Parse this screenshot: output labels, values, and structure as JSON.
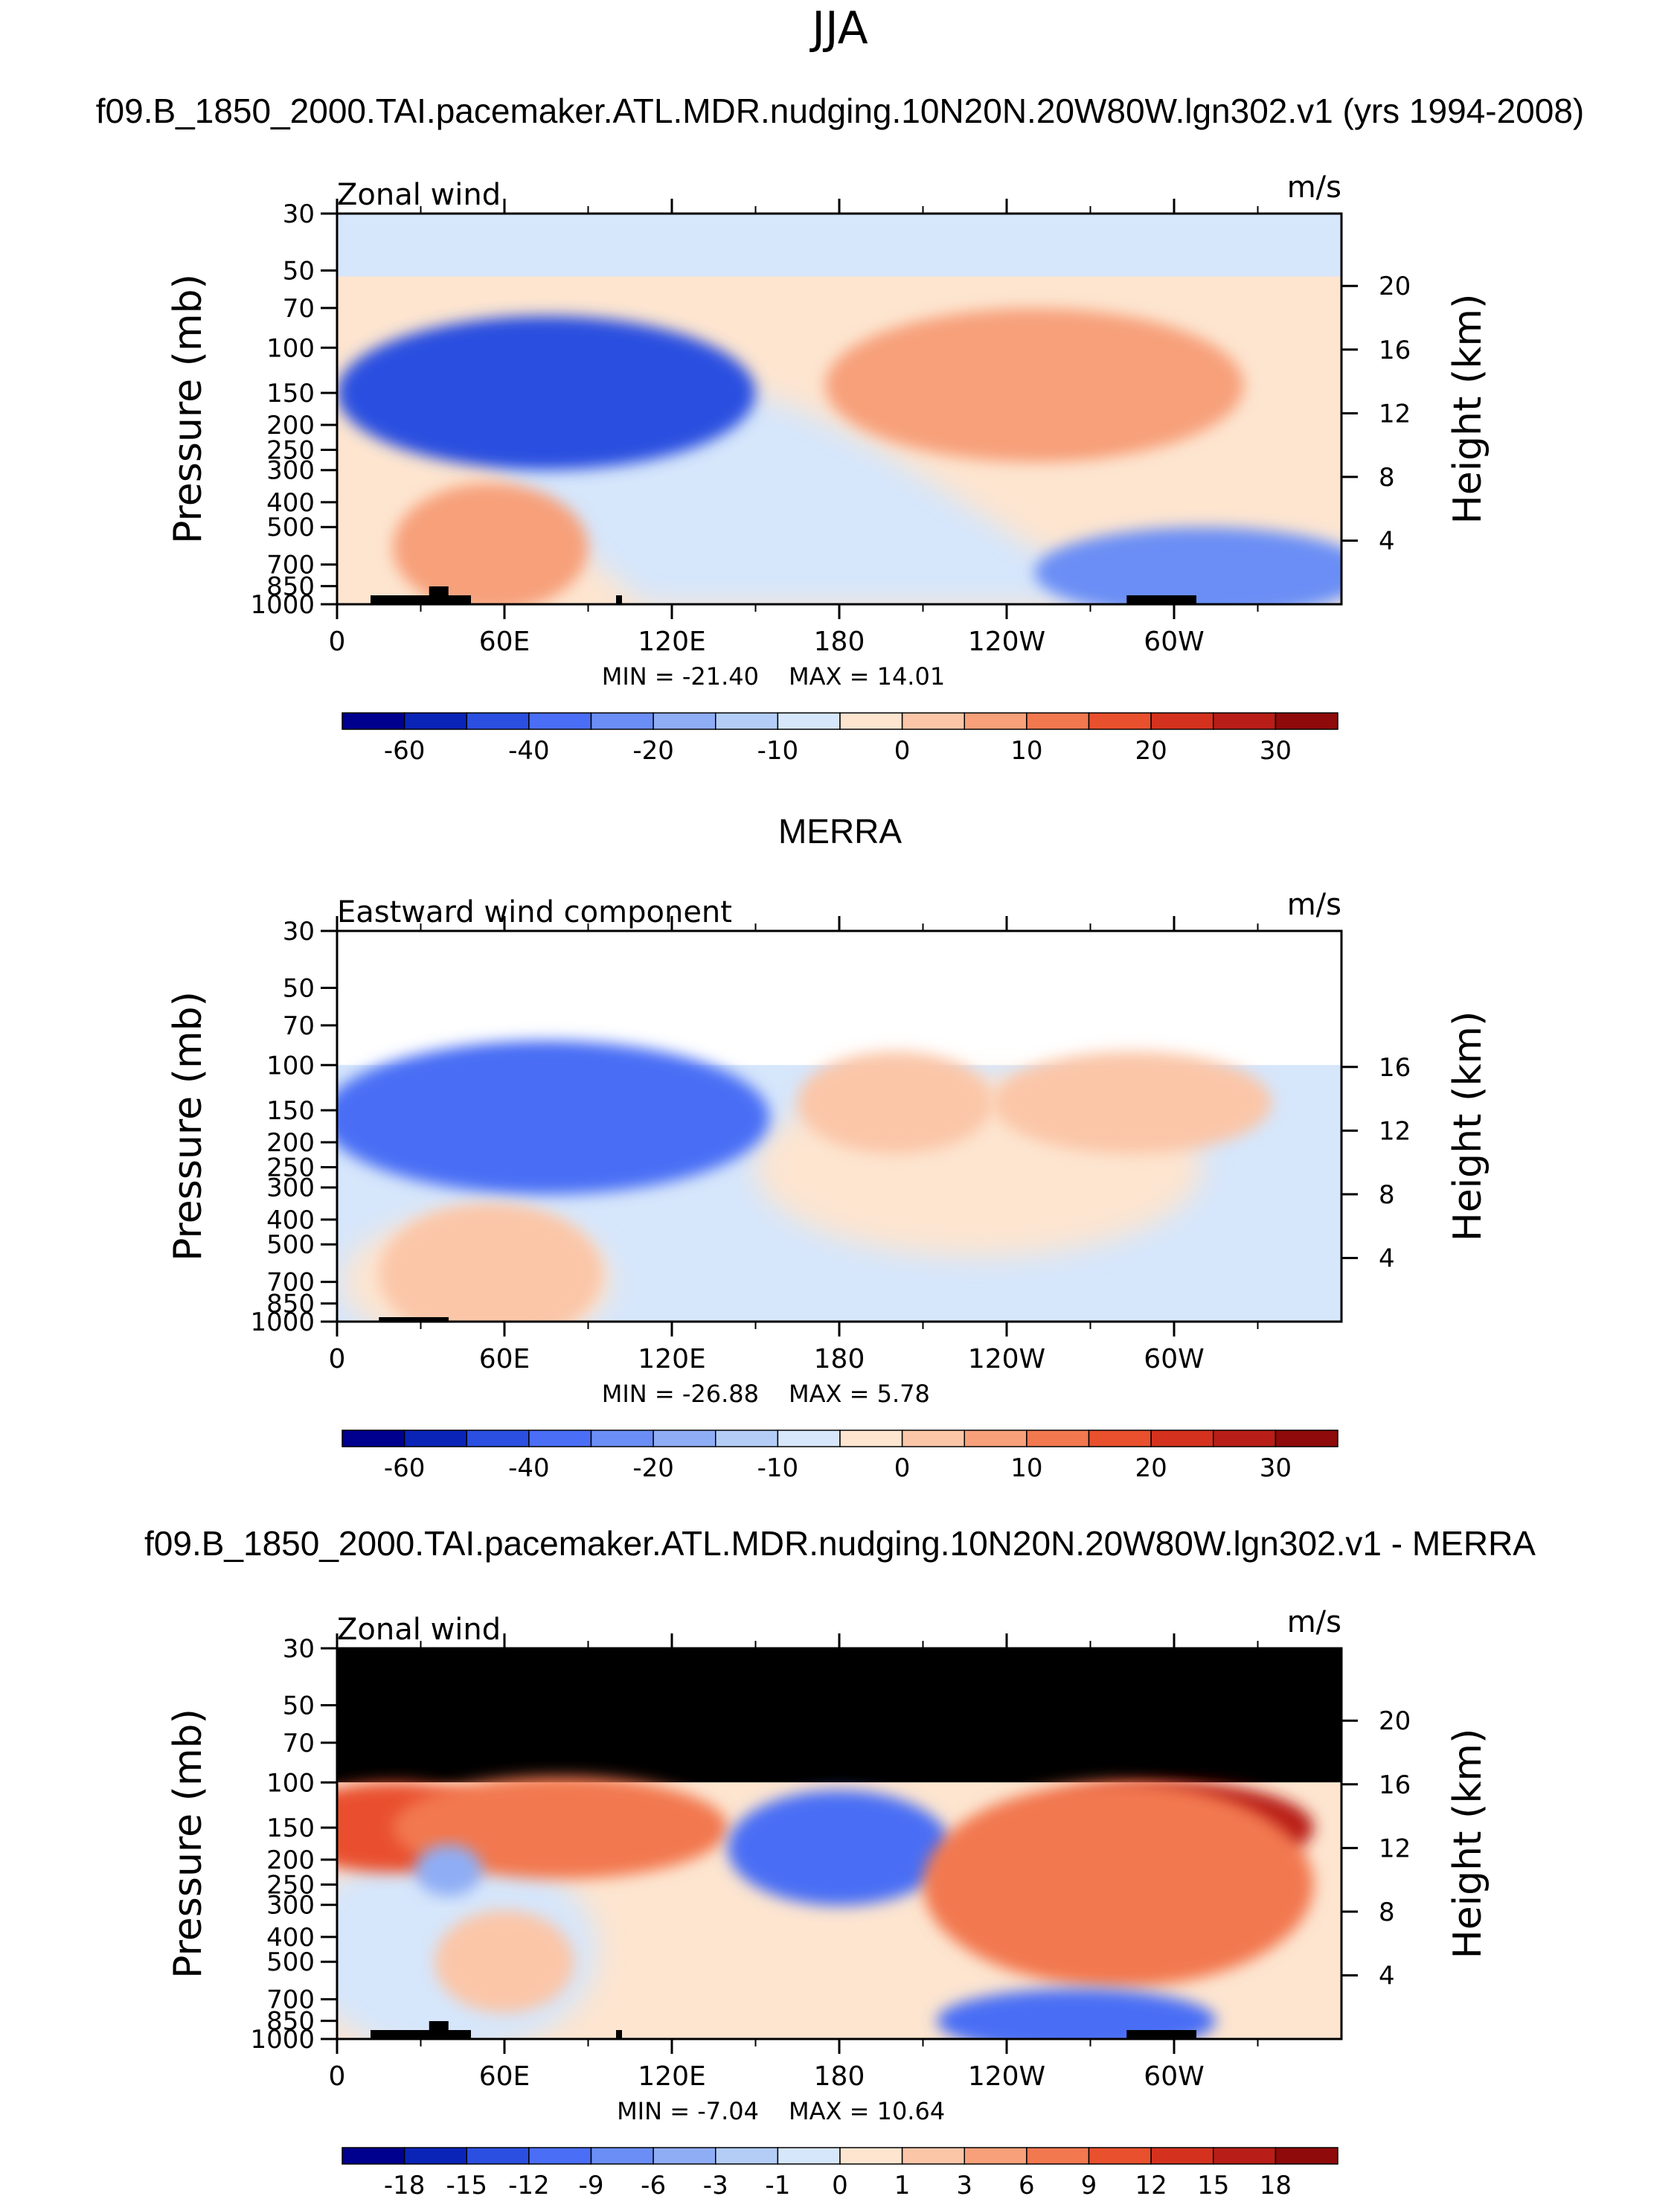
{
  "figure": {
    "season": "JJA",
    "top_title": "f09.B_1850_2000.TAI.pacemaker.ATL.MDR.nudging.10N20N.20W80W.lgn302.v1 (yrs 1994-2008)",
    "middle_title": "MERRA",
    "bottom_title": "f09.B_1850_2000.TAI.pacemaker.ATL.MDR.nudging.10N20N.20W80W.lgn302.v1 - MERRA"
  },
  "chart_data": [
    {
      "type": "heatmap",
      "id": "model",
      "left_label": "Zonal wind",
      "units": "m/s",
      "xlabel": "",
      "ylabel": "Pressure (mb)",
      "y2label": "Height (km)",
      "x_ticks": [
        "0",
        "60E",
        "120E",
        "180",
        "120W",
        "60W"
      ],
      "x_tick_lon": [
        0,
        60,
        120,
        180,
        240,
        300
      ],
      "xlim": [
        0,
        360
      ],
      "y_ticks": [
        "30",
        "50",
        "70",
        "100",
        "150",
        "200",
        "250",
        "300",
        "400",
        "500",
        "700",
        "850",
        "1000"
      ],
      "ylim": [
        1000,
        30
      ],
      "height_ticks": [
        "20",
        "16",
        "12",
        "8",
        "4"
      ],
      "min_label": "MIN = -21.40",
      "max_label": "MAX = 14.01",
      "min": -21.4,
      "max": 14.01,
      "colorbar": [
        "-60",
        "-40",
        "-20",
        "-10",
        "0",
        "10",
        "20",
        "30"
      ],
      "colorbar_colors": [
        "#00008f",
        "#0a24b8",
        "#2b4fe0",
        "#4a6ef5",
        "#6a8ef5",
        "#8eadf5",
        "#b3cdf7",
        "#d6e6fb",
        "#fde5d0",
        "#fbc6a8",
        "#f7a07a",
        "#f2784f",
        "#e9502e",
        "#d4321e",
        "#b81e17",
        "#8f0a0a"
      ],
      "features": [
        {
          "lon": 70,
          "p": 150,
          "value": -21,
          "rx": 55,
          "rp": 0.45
        },
        {
          "lon": 75,
          "p": 150,
          "value": -14,
          "rx": 75,
          "rp": 0.6
        },
        {
          "lon": 260,
          "p": 150,
          "value": 14,
          "rx": 40,
          "rp": 0.4
        },
        {
          "lon": 250,
          "p": 140,
          "value": 8,
          "rx": 75,
          "rp": 0.6
        },
        {
          "lon": 55,
          "p": 600,
          "value": 8,
          "rx": 35,
          "rp": 0.5
        },
        {
          "lon": 310,
          "p": 750,
          "value": -8,
          "rx": 60,
          "rp": 0.35
        }
      ]
    },
    {
      "type": "heatmap",
      "id": "merra",
      "left_label": "Eastward wind component",
      "units": "m/s",
      "xlabel": "",
      "ylabel": "Pressure (mb)",
      "y2label": "Height (km)",
      "x_ticks": [
        "0",
        "60E",
        "120E",
        "180",
        "120W",
        "60W"
      ],
      "x_tick_lon": [
        0,
        60,
        120,
        180,
        240,
        300
      ],
      "xlim": [
        0,
        360
      ],
      "y_ticks": [
        "30",
        "50",
        "70",
        "100",
        "150",
        "200",
        "250",
        "300",
        "400",
        "500",
        "700",
        "850",
        "1000"
      ],
      "ylim": [
        1000,
        30
      ],
      "data_top_p": 100,
      "height_ticks": [
        "16",
        "12",
        "8",
        "4"
      ],
      "min_label": "MIN = -26.88",
      "max_label": "MAX = 5.78",
      "min": -26.88,
      "max": 5.78,
      "colorbar": [
        "-60",
        "-40",
        "-20",
        "-10",
        "0",
        "10",
        "20",
        "30"
      ],
      "colorbar_colors": [
        "#00008f",
        "#0a24b8",
        "#2b4fe0",
        "#4a6ef5",
        "#6a8ef5",
        "#8eadf5",
        "#b3cdf7",
        "#d6e6fb",
        "#fde5d0",
        "#fbc6a8",
        "#f7a07a",
        "#f2784f",
        "#e9502e",
        "#d4321e",
        "#b81e17",
        "#8f0a0a"
      ],
      "features": [
        {
          "lon": 70,
          "p": 150,
          "value": -26,
          "rx": 50,
          "rp": 0.4
        },
        {
          "lon": 75,
          "p": 160,
          "value": -15,
          "rx": 80,
          "rp": 0.6
        },
        {
          "lon": 200,
          "p": 140,
          "value": 5,
          "rx": 35,
          "rp": 0.4
        },
        {
          "lon": 285,
          "p": 140,
          "value": 5,
          "rx": 50,
          "rp": 0.4
        },
        {
          "lon": 55,
          "p": 650,
          "value": 5,
          "rx": 40,
          "rp": 0.55
        }
      ]
    },
    {
      "type": "heatmap",
      "id": "difference",
      "left_label": "Zonal wind",
      "units": "m/s",
      "xlabel": "",
      "ylabel": "Pressure (mb)",
      "y2label": "Height (km)",
      "x_ticks": [
        "0",
        "60E",
        "120E",
        "180",
        "120W",
        "60W"
      ],
      "x_tick_lon": [
        0,
        60,
        120,
        180,
        240,
        300
      ],
      "xlim": [
        0,
        360
      ],
      "y_ticks": [
        "30",
        "50",
        "70",
        "100",
        "150",
        "200",
        "250",
        "300",
        "400",
        "500",
        "700",
        "850",
        "1000"
      ],
      "ylim": [
        1000,
        30
      ],
      "data_top_p": 100,
      "height_ticks": [
        "20",
        "16",
        "12",
        "8",
        "4"
      ],
      "min_label": "MIN = -7.04",
      "max_label": "MAX = 10.64",
      "min": -7.04,
      "max": 10.64,
      "colorbar": [
        "-18",
        "-15",
        "-12",
        "-9",
        "-6",
        "-3",
        "-1",
        "0",
        "1",
        "3",
        "6",
        "9",
        "12",
        "15",
        "18"
      ],
      "colorbar_colors": [
        "#00008f",
        "#0a24b8",
        "#2b4fe0",
        "#4a6ef5",
        "#6a8ef5",
        "#8eadf5",
        "#b3cdf7",
        "#d6e6fb",
        "#fde5d0",
        "#fbc6a8",
        "#f7a07a",
        "#f2784f",
        "#e9502e",
        "#d4321e",
        "#b81e17",
        "#8f0a0a"
      ],
      "features": [
        {
          "lon": 20,
          "p": 150,
          "value": 7,
          "rx": 40,
          "rp": 0.35
        },
        {
          "lon": 80,
          "p": 150,
          "value": 5,
          "rx": 60,
          "rp": 0.4
        },
        {
          "lon": 180,
          "p": 180,
          "value": -6,
          "rx": 40,
          "rp": 0.45
        },
        {
          "lon": 300,
          "p": 150,
          "value": 10,
          "rx": 50,
          "rp": 0.35
        },
        {
          "lon": 280,
          "p": 250,
          "value": 6,
          "rx": 70,
          "rp": 0.8
        },
        {
          "lon": 265,
          "p": 850,
          "value": -5,
          "rx": 50,
          "rp": 0.25
        },
        {
          "lon": 40,
          "p": 220,
          "value": -3,
          "rx": 12,
          "rp": 0.2
        },
        {
          "lon": 60,
          "p": 500,
          "value": 3,
          "rx": 25,
          "rp": 0.4
        }
      ]
    }
  ]
}
